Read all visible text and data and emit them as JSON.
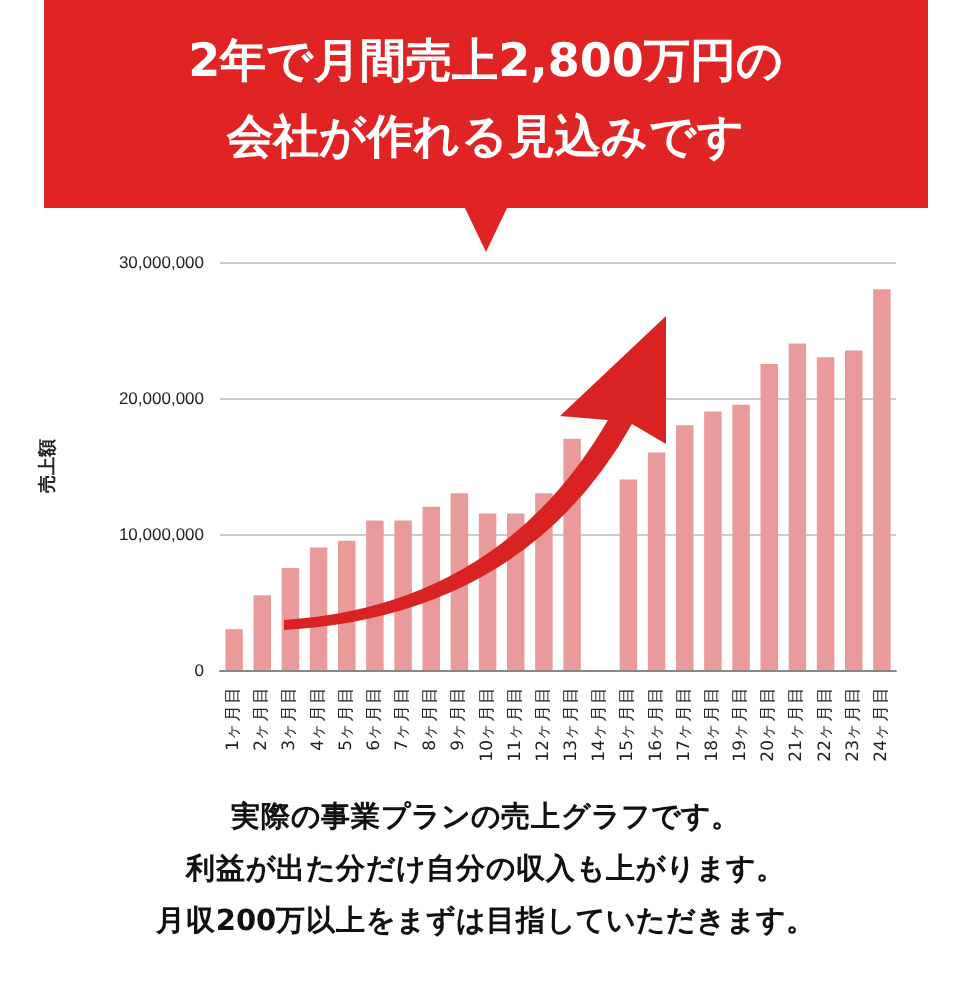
{
  "chart_data": {
    "type": "bar",
    "title": "2年で月間売上2,800万円の会社が作れる見込みです",
    "ylabel": "売上額",
    "categories": [
      "1ヶ月目",
      "2ヶ月目",
      "3ヶ月目",
      "4ヶ月目",
      "5ヶ月目",
      "6ヶ月目",
      "7ヶ月目",
      "8ヶ月目",
      "9ヶ月目",
      "10ヶ月目",
      "11ヶ月目",
      "12ヶ月目",
      "13ヶ月目",
      "14ヶ月目",
      "15ヶ月目",
      "16ヶ月目",
      "17ヶ月目",
      "18ヶ月目",
      "19ヶ月目",
      "20ヶ月目",
      "21ヶ月目",
      "22ヶ月目",
      "23ヶ月目",
      "24ヶ月目"
    ],
    "values": [
      3000000,
      5500000,
      7500000,
      9000000,
      9500000,
      11000000,
      11000000,
      12000000,
      13000000,
      11500000,
      11500000,
      13000000,
      17000000,
      null,
      14000000,
      16000000,
      18000000,
      19000000,
      19500000,
      22500000,
      24000000,
      23000000,
      23500000,
      28000000
    ],
    "color": "#e99a9a",
    "ylim": [
      0,
      30000000
    ],
    "yticks": [
      0,
      {
        "value": 10000000,
        "label": "10,000,000"
      },
      {
        "value": 20000000,
        "label": "20,000,000"
      },
      {
        "value": 30000000,
        "label": "30,000,000"
      }
    ],
    "grid": "y",
    "annotations": [
      "実際の事業プランの売上グラフです。",
      "利益が出た分だけ自分の収入も上がります。",
      "月収200万以上をまずは目指していただきます。"
    ]
  }
}
